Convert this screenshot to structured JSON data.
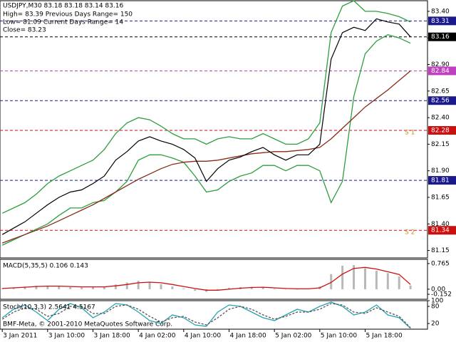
{
  "chart_data": [
    {
      "type": "line",
      "title": "USDJPY,M30  83.18 83.18 83.14 83.16",
      "info": [
        "High= 83.39   Previous Days Range= 150",
        "Low= 81.09   Current Days Range= 14",
        "Close= 83.23"
      ],
      "annotation": "BMF-Meta, © 2001-2010 MetaQuotes Software Corp.",
      "x": [
        0,
        2,
        4,
        6,
        8,
        10,
        12,
        14,
        16,
        18,
        20,
        22,
        24,
        26,
        28,
        30,
        32,
        34,
        36,
        38,
        40,
        42,
        44,
        46,
        48,
        50,
        52,
        54,
        56,
        58,
        60,
        62,
        64,
        66,
        68,
        70,
        72
      ],
      "xlim": [
        -0.4,
        75
      ],
      "xticks": [
        {
          "value": 0,
          "label": "3 Jan 2011"
        },
        {
          "value": 8,
          "label": "3 Jan 10:00"
        },
        {
          "value": 16,
          "label": "3 Jan 18:00"
        },
        {
          "value": 24,
          "label": "4 Jan 02:00"
        },
        {
          "value": 32,
          "label": "4 Jan 10:00"
        },
        {
          "value": 40,
          "label": "4 Jan 18:00"
        },
        {
          "value": 48,
          "label": "5 Jan 02:00"
        },
        {
          "value": 56,
          "label": "5 Jan 10:00"
        },
        {
          "value": 64,
          "label": "5 Jan 18:00"
        }
      ],
      "ylim": [
        81.08,
        83.5
      ],
      "yticks": [
        81.15,
        {
          "value": 81.4,
          "label": "81.40"
        },
        81.65,
        {
          "value": 81.9,
          "label": "81.90"
        },
        82.15,
        {
          "value": 82.4,
          "label": "82.40"
        },
        82.65,
        {
          "value": 82.9,
          "label": "82.90"
        },
        83.15,
        {
          "value": 83.4,
          "label": "83.40"
        }
      ],
      "series": [
        {
          "color": "#2e9e3e",
          "values": [
            81.5,
            81.55,
            81.6,
            81.68,
            81.78,
            81.85,
            81.9,
            81.95,
            82.0,
            82.1,
            82.25,
            82.35,
            82.4,
            82.38,
            82.32,
            82.25,
            82.2,
            82.2,
            82.15,
            82.2,
            82.22,
            82.2,
            82.2,
            82.25,
            82.2,
            82.15,
            82.15,
            82.2,
            82.35,
            83.2,
            83.45,
            83.5,
            83.4,
            83.4,
            83.38,
            83.35,
            83.3
          ]
        },
        {
          "color": "#2e9e3e",
          "values": [
            81.2,
            81.25,
            81.3,
            81.35,
            81.4,
            81.48,
            81.55,
            81.55,
            81.6,
            81.62,
            81.7,
            81.8,
            82.0,
            82.05,
            82.05,
            82.02,
            81.98,
            81.85,
            81.7,
            81.72,
            81.8,
            81.85,
            81.88,
            81.95,
            81.95,
            81.9,
            81.95,
            81.95,
            81.9,
            81.6,
            81.8,
            82.6,
            83.0,
            83.12,
            83.18,
            83.15,
            83.1
          ]
        },
        {
          "color": "#8b2a1a",
          "values": [
            81.22,
            81.26,
            81.3,
            81.34,
            81.38,
            81.43,
            81.48,
            81.53,
            81.58,
            81.64,
            81.7,
            81.76,
            81.82,
            81.87,
            81.92,
            81.96,
            81.98,
            81.99,
            81.99,
            82.0,
            82.02,
            82.04,
            82.06,
            82.07,
            82.08,
            82.08,
            82.09,
            82.1,
            82.12,
            82.2,
            82.3,
            82.4,
            82.5,
            82.58,
            82.66,
            82.75,
            82.84
          ]
        },
        {
          "color": "#000000",
          "values": [
            81.3,
            81.36,
            81.42,
            81.5,
            81.58,
            81.65,
            81.7,
            81.72,
            81.78,
            81.85,
            82.0,
            82.08,
            82.18,
            82.22,
            82.18,
            82.15,
            82.1,
            82.02,
            81.8,
            81.92,
            82.0,
            82.03,
            82.08,
            82.12,
            82.05,
            82.0,
            82.05,
            82.05,
            82.15,
            82.95,
            83.2,
            83.25,
            83.22,
            83.33,
            83.3,
            83.28,
            83.16
          ]
        }
      ],
      "levels": [
        {
          "value": 83.31,
          "color": "#1a1a8c"
        },
        {
          "value": 83.16,
          "color": "#000000"
        },
        {
          "value": 82.84,
          "color": "#c040c0"
        },
        {
          "value": 82.56,
          "color": "#1a1a8c"
        },
        {
          "value": 82.28,
          "color": "#cc1010",
          "note": "S 1"
        },
        {
          "value": 81.81,
          "color": "#1a1a8c"
        },
        {
          "value": 81.34,
          "color": "#cc1010",
          "note": "S 2"
        }
      ]
    },
    {
      "type": "bar",
      "title": "MACD(5,35,5) 0.106 0.143",
      "ylim": [
        -0.3,
        0.89
      ],
      "yticks": [
        -0.152,
        {
          "value": 0,
          "label": "0.00"
        },
        0.765
      ],
      "color": "#b8b8b8",
      "values": [
        0.02,
        0.05,
        0.08,
        0.1,
        0.1,
        0.08,
        0.06,
        0.05,
        0.06,
        0.08,
        0.14,
        0.2,
        0.25,
        0.22,
        0.15,
        0.08,
        0.02,
        -0.05,
        -0.08,
        -0.02,
        0.04,
        0.06,
        0.07,
        0.06,
        0.02,
        -0.01,
        0.0,
        0.01,
        0.08,
        0.45,
        0.7,
        0.72,
        0.62,
        0.55,
        0.48,
        0.38,
        0.11
      ],
      "signal": {
        "color": "#cc1010",
        "values": [
          0.02,
          0.04,
          0.06,
          0.08,
          0.09,
          0.09,
          0.08,
          0.07,
          0.07,
          0.07,
          0.1,
          0.14,
          0.19,
          0.21,
          0.19,
          0.14,
          0.08,
          0.02,
          -0.03,
          -0.03,
          0.0,
          0.03,
          0.05,
          0.06,
          0.04,
          0.02,
          0.01,
          0.01,
          0.04,
          0.2,
          0.45,
          0.62,
          0.65,
          0.6,
          0.52,
          0.44,
          0.14
        ]
      }
    },
    {
      "type": "line",
      "title": "Stoch(10,3,3) 2.5641 4.5167",
      "ylim": [
        0,
        100
      ],
      "yticks": [
        20,
        80,
        100
      ],
      "series": [
        {
          "color": "#2aa0b0",
          "values": [
            40,
            70,
            85,
            60,
            30,
            70,
            90,
            75,
            40,
            60,
            90,
            85,
            60,
            30,
            20,
            50,
            40,
            15,
            10,
            60,
            85,
            80,
            60,
            40,
            30,
            50,
            70,
            60,
            80,
            95,
            80,
            50,
            60,
            85,
            50,
            40,
            3
          ]
        },
        {
          "color": "#555555",
          "dash": "3,2",
          "values": [
            35,
            60,
            75,
            70,
            45,
            55,
            80,
            80,
            55,
            55,
            80,
            85,
            70,
            45,
            25,
            40,
            45,
            25,
            15,
            40,
            70,
            80,
            70,
            50,
            35,
            45,
            60,
            60,
            70,
            90,
            85,
            60,
            55,
            75,
            60,
            45,
            5
          ]
        }
      ]
    }
  ]
}
